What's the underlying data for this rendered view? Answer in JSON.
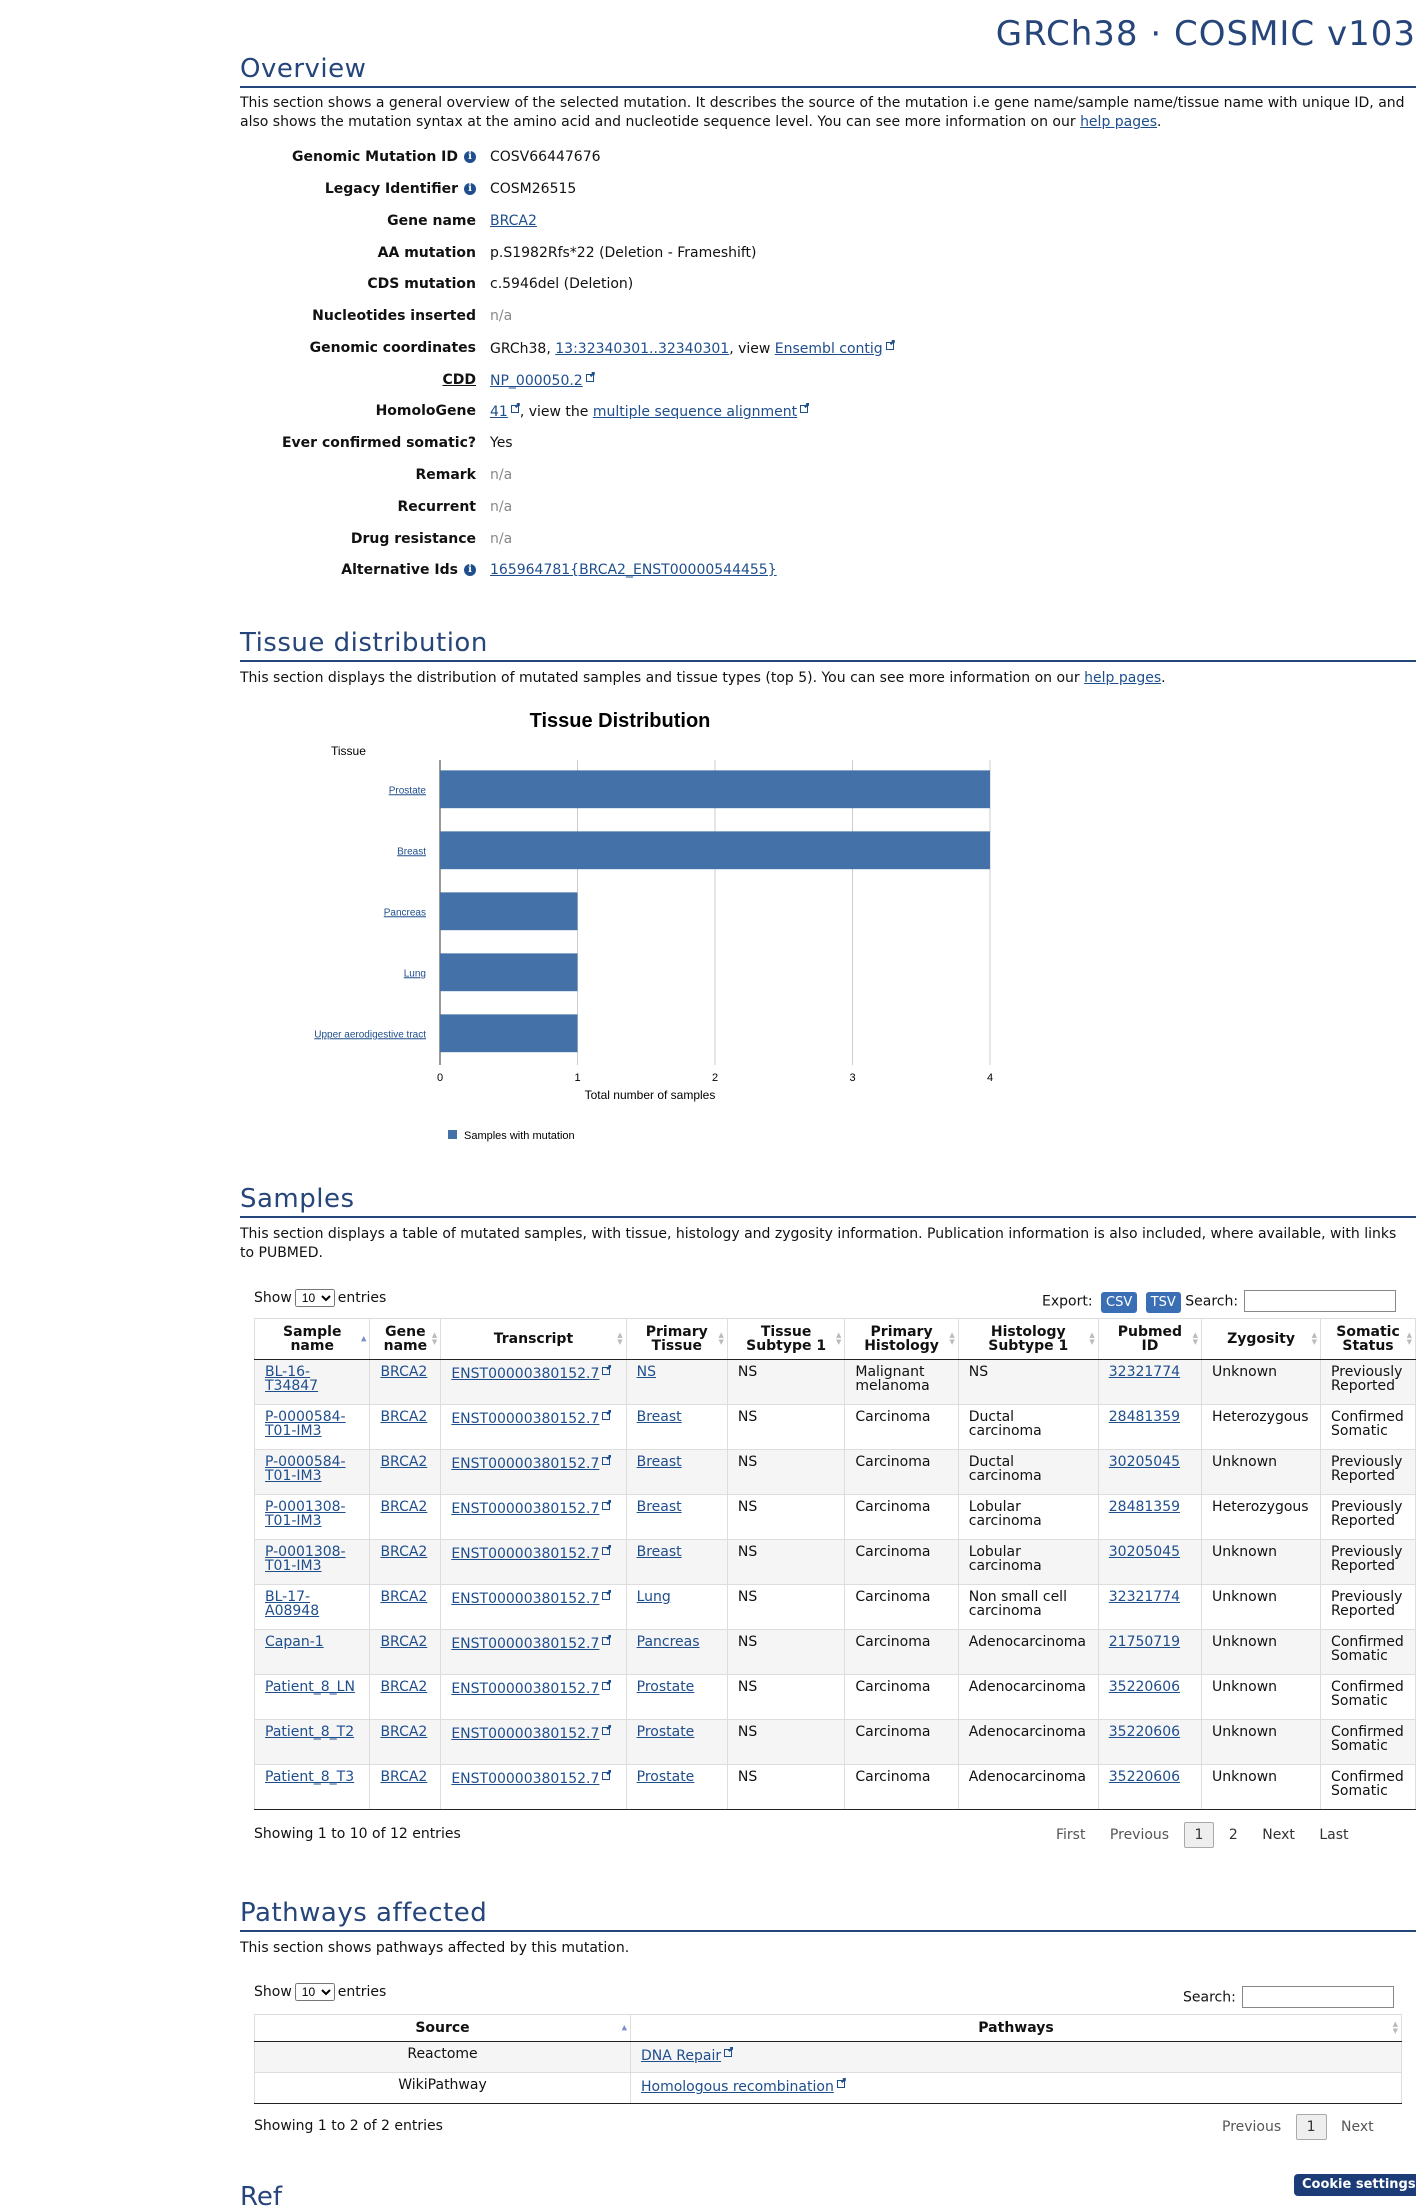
{
  "header": {
    "title": "GRCh38 · COSMIC v103"
  },
  "overview": {
    "title": "Overview",
    "description": "This section shows a general overview of the selected mutation. It describes the source of the mutation i.e gene name/sample name/tissue name with unique ID, and also shows the mutation syntax at the amino acid and nucleotide sequence level. You can see more information on our ",
    "help_link": "help pages",
    "rows": {
      "genomic_mutation_id": {
        "label": "Genomic Mutation ID",
        "value": "COSV66447676"
      },
      "legacy_identifier": {
        "label": "Legacy Identifier",
        "value": "COSM26515"
      },
      "gene_name": {
        "label": "Gene name",
        "value": "BRCA2"
      },
      "aa_mutation": {
        "label": "AA mutation",
        "value": "p.S1982Rfs*22 (Deletion - Frameshift)"
      },
      "cds_mutation": {
        "label": "CDS mutation",
        "value": "c.5946del (Deletion)"
      },
      "nucleotides_inserted": {
        "label": "Nucleotides inserted",
        "value": "n/a"
      },
      "genomic_coordinates": {
        "label": "Genomic coordinates",
        "prefix": "GRCh38, ",
        "link": "13:32340301..32340301",
        "middle": ", view ",
        "link2": "Ensembl contig"
      },
      "cdd": {
        "label": "CDD",
        "value": "NP_000050.2"
      },
      "homologene": {
        "label": "HomoloGene",
        "value": "41",
        "middle": ", view the ",
        "link2": "multiple sequence alignment"
      },
      "ever_confirmed_somatic": {
        "label": "Ever confirmed somatic?",
        "value": "Yes"
      },
      "remark": {
        "label": "Remark",
        "value": "n/a"
      },
      "recurrent": {
        "label": "Recurrent",
        "value": "n/a"
      },
      "drug_resistance": {
        "label": "Drug resistance",
        "value": "n/a"
      },
      "alternative_ids": {
        "label": "Alternative Ids",
        "value": "165964781{BRCA2_ENST00000544455}"
      }
    }
  },
  "tissue": {
    "title": "Tissue distribution",
    "description": "This section displays the distribution of mutated samples and tissue types (top 5). You can see more information on our ",
    "help_link": "help pages"
  },
  "chart_data": {
    "type": "bar",
    "orientation": "horizontal",
    "title": "Tissue Distribution",
    "ylabel": "Tissue",
    "xlabel": "Total number of samples",
    "categories": [
      "Prostate",
      "Breast",
      "Pancreas",
      "Lung",
      "Upper aerodigestive tract"
    ],
    "values": [
      4,
      4,
      1,
      1,
      1
    ],
    "series_name": "Samples with mutation",
    "xlim": [
      0,
      4
    ],
    "xticks": [
      "0",
      "1",
      "2",
      "3",
      "4"
    ],
    "bar_color": "#4472a8",
    "grid": true,
    "legend_position": "bottom-left"
  },
  "samples": {
    "title": "Samples",
    "description": "This section displays a table of mutated samples, with tissue, histology and zygosity information. Publication information is also included, where available, with links to PUBMED.",
    "show_label": "Show",
    "entries_label": "entries",
    "page_length": "10",
    "export_label": "Export:",
    "csv": "CSV",
    "tsv": "TSV",
    "search_label": "Search:",
    "columns": [
      [
        "Sample",
        "name"
      ],
      [
        "Gene",
        "name"
      ],
      [
        "Transcript",
        ""
      ],
      [
        "Primary",
        "Tissue"
      ],
      [
        "Tissue",
        "Subtype 1"
      ],
      [
        "Primary",
        "Histology"
      ],
      [
        "Histology",
        "Subtype 1"
      ],
      [
        "Pubmed",
        "ID"
      ],
      [
        "Zygosity",
        ""
      ],
      [
        "Somatic",
        "Status"
      ]
    ],
    "rows": [
      {
        "sample": [
          "BL-16-",
          "T34847"
        ],
        "gene": "BRCA2",
        "transcript": "ENST00000380152.7",
        "tissue": "NS",
        "subtype": "NS",
        "histology": [
          "Malignant",
          "melanoma"
        ],
        "hist_subtype": [
          "NS",
          ""
        ],
        "pubmed": "32321774",
        "zygosity": "Unknown",
        "status": [
          "Previously",
          "Reported"
        ]
      },
      {
        "sample": [
          "P-0000584-",
          "T01-IM3"
        ],
        "gene": "BRCA2",
        "transcript": "ENST00000380152.7",
        "tissue": "Breast",
        "subtype": "NS",
        "histology": [
          "Carcinoma",
          ""
        ],
        "hist_subtype": [
          "Ductal",
          "carcinoma"
        ],
        "pubmed": "28481359",
        "zygosity": "Heterozygous",
        "status": [
          "Confirmed",
          "Somatic"
        ]
      },
      {
        "sample": [
          "P-0000584-",
          "T01-IM3"
        ],
        "gene": "BRCA2",
        "transcript": "ENST00000380152.7",
        "tissue": "Breast",
        "subtype": "NS",
        "histology": [
          "Carcinoma",
          ""
        ],
        "hist_subtype": [
          "Ductal",
          "carcinoma"
        ],
        "pubmed": "30205045",
        "zygosity": "Unknown",
        "status": [
          "Previously",
          "Reported"
        ]
      },
      {
        "sample": [
          "P-0001308-",
          "T01-IM3"
        ],
        "gene": "BRCA2",
        "transcript": "ENST00000380152.7",
        "tissue": "Breast",
        "subtype": "NS",
        "histology": [
          "Carcinoma",
          ""
        ],
        "hist_subtype": [
          "Lobular",
          "carcinoma"
        ],
        "pubmed": "28481359",
        "zygosity": "Heterozygous",
        "status": [
          "Previously",
          "Reported"
        ]
      },
      {
        "sample": [
          "P-0001308-",
          "T01-IM3"
        ],
        "gene": "BRCA2",
        "transcript": "ENST00000380152.7",
        "tissue": "Breast",
        "subtype": "NS",
        "histology": [
          "Carcinoma",
          ""
        ],
        "hist_subtype": [
          "Lobular",
          "carcinoma"
        ],
        "pubmed": "30205045",
        "zygosity": "Unknown",
        "status": [
          "Previously",
          "Reported"
        ]
      },
      {
        "sample": [
          "BL-17-",
          "A08948"
        ],
        "gene": "BRCA2",
        "transcript": "ENST00000380152.7",
        "tissue": "Lung",
        "subtype": "NS",
        "histology": [
          "Carcinoma",
          ""
        ],
        "hist_subtype": [
          "Non small cell",
          "carcinoma"
        ],
        "pubmed": "32321774",
        "zygosity": "Unknown",
        "status": [
          "Previously",
          "Reported"
        ]
      },
      {
        "sample": [
          "Capan-1",
          ""
        ],
        "gene": "BRCA2",
        "transcript": "ENST00000380152.7",
        "tissue": "Pancreas",
        "subtype": "NS",
        "histology": [
          "Carcinoma",
          ""
        ],
        "hist_subtype": [
          "Adenocarcinoma",
          ""
        ],
        "pubmed": "21750719",
        "zygosity": "Unknown",
        "status": [
          "Confirmed",
          "Somatic"
        ]
      },
      {
        "sample": [
          "Patient_8_LN",
          ""
        ],
        "gene": "BRCA2",
        "transcript": "ENST00000380152.7",
        "tissue": "Prostate",
        "subtype": "NS",
        "histology": [
          "Carcinoma",
          ""
        ],
        "hist_subtype": [
          "Adenocarcinoma",
          ""
        ],
        "pubmed": "35220606",
        "zygosity": "Unknown",
        "status": [
          "Confirmed",
          "Somatic"
        ]
      },
      {
        "sample": [
          "Patient_8_T2",
          ""
        ],
        "gene": "BRCA2",
        "transcript": "ENST00000380152.7",
        "tissue": "Prostate",
        "subtype": "NS",
        "histology": [
          "Carcinoma",
          ""
        ],
        "hist_subtype": [
          "Adenocarcinoma",
          ""
        ],
        "pubmed": "35220606",
        "zygosity": "Unknown",
        "status": [
          "Confirmed",
          "Somatic"
        ]
      },
      {
        "sample": [
          "Patient_8_T3",
          ""
        ],
        "gene": "BRCA2",
        "transcript": "ENST00000380152.7",
        "tissue": "Prostate",
        "subtype": "NS",
        "histology": [
          "Carcinoma",
          ""
        ],
        "hist_subtype": [
          "Adenocarcinoma",
          ""
        ],
        "pubmed": "35220606",
        "zygosity": "Unknown",
        "status": [
          "Confirmed",
          "Somatic"
        ]
      }
    ],
    "info": "Showing 1 to 10 of 12 entries",
    "pager": {
      "first": "First",
      "previous": "Previous",
      "current": "1",
      "page2": "2",
      "next": "Next",
      "last": "Last"
    }
  },
  "pathways": {
    "title": "Pathways affected",
    "description": "This section shows pathways affected by this mutation.",
    "show_label": "Show",
    "entries_label": "entries",
    "page_length": "10",
    "search_label": "Search:",
    "columns": [
      "Source",
      "Pathways"
    ],
    "rows": [
      {
        "source": "Reactome",
        "pathway": "DNA Repair"
      },
      {
        "source": "WikiPathway",
        "pathway": "Homologous recombination"
      }
    ],
    "info": "Showing 1 to 2 of 2 entries",
    "pager": {
      "previous": "Previous",
      "current": "1",
      "next": "Next"
    }
  },
  "references": {
    "title_partial": "Ref"
  },
  "cookie": {
    "label": "Cookie settings"
  }
}
